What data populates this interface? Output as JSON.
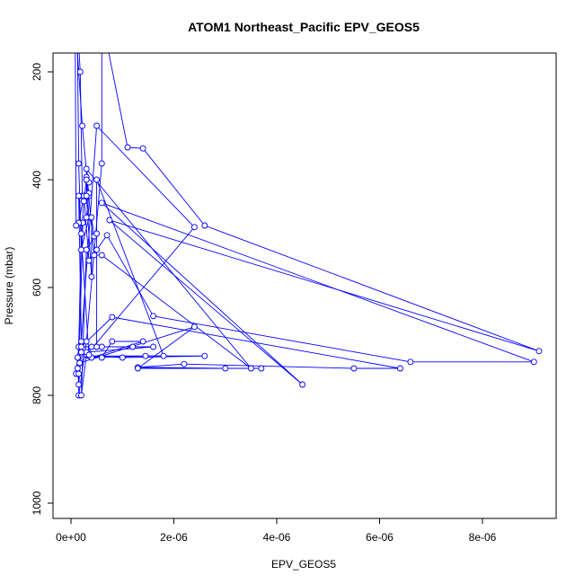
{
  "chart_data": {
    "type": "line",
    "title": "ATOM1 Northeast_Pacific EPV_GEOS5",
    "xlabel": "EPV_GEOS5",
    "ylabel": "Pressure (mbar)",
    "xlim": [
      -5e-07,
      9.3e-06
    ],
    "ylim": [
      1020,
      180
    ],
    "y_reversed": true,
    "x_ticks": [
      0,
      2e-06,
      4e-06,
      6e-06,
      8e-06
    ],
    "x_tick_labels": [
      "0e+00",
      "2e-06",
      "4e-06",
      "6e-06",
      "8e-06"
    ],
    "y_ticks": [
      200,
      400,
      600,
      800,
      1000
    ],
    "y_tick_labels": [
      "200",
      "400",
      "600",
      "800",
      "1000"
    ],
    "color": "#0000ff",
    "grid": false,
    "legend": "none",
    "series": [
      {
        "points": [
          [
            1e-07,
            760
          ],
          [
            1.3e-07,
            730
          ],
          [
            1.5e-07,
            710
          ],
          [
            2e-07,
            500
          ],
          [
            2.5e-07,
            440
          ],
          [
            3e-07,
            400
          ],
          [
            3.5e-07,
            470
          ],
          [
            2e-07,
            530
          ],
          [
            1.5e-07,
            370
          ],
          [
            1.2e-07,
            100
          ],
          [
            1.8e-07,
            200
          ],
          [
            2.2e-07,
            430
          ],
          [
            3.5e-07,
            430
          ],
          [
            3e-07,
            395
          ],
          [
            3.5e-07,
            425
          ],
          [
            3e-07,
            470
          ],
          [
            2.3e-07,
            480
          ],
          [
            1.5e-07,
            760
          ],
          [
            1.5e-07,
            800
          ],
          [
            3e-07,
            700
          ],
          [
            6e-07,
            370
          ],
          [
            6e-07,
            100
          ],
          [
            1.1e-06,
            340
          ],
          [
            1.4e-06,
            342
          ],
          [
            2.6e-06,
            485
          ],
          [
            9.1e-06,
            718
          ],
          [
            7.5e-07,
            475
          ],
          [
            4.5e-06,
            780
          ],
          [
            6e-07,
            443
          ],
          [
            9e-06,
            738
          ],
          [
            6.6e-06,
            738
          ],
          [
            1.6e-06,
            653
          ],
          [
            7e-07,
            503
          ],
          [
            5e-07,
            530
          ],
          [
            3.5e-07,
            550
          ],
          [
            2.5e-07,
            430
          ],
          [
            1.5e-07,
            480
          ],
          [
            1e-07,
            485
          ],
          [
            8e-08,
            100
          ],
          [
            2.2e-07,
            300
          ],
          [
            4.5e-07,
            540
          ],
          [
            6e-07,
            540
          ],
          [
            3.5e-06,
            750
          ],
          [
            3e-07,
            380
          ],
          [
            3.5e-07,
            405
          ],
          [
            3e-07,
            400
          ],
          [
            3e-07,
            430
          ],
          [
            4e-07,
            580
          ],
          [
            4e-07,
            470
          ],
          [
            4.5e-07,
            505
          ],
          [
            5e-07,
            500
          ],
          [
            3e-07,
            530
          ],
          [
            2e-07,
            800
          ],
          [
            3e-07,
            725
          ],
          [
            2.4e-06,
            488
          ],
          [
            5e-07,
            300
          ],
          [
            2e-07,
            700
          ],
          [
            1.5e-07,
            430
          ],
          [
            3.5e-07,
            727
          ],
          [
            1e-06,
            730
          ],
          [
            2.6e-06,
            727
          ],
          [
            3.5e-07,
            727
          ],
          [
            6e-07,
            730
          ],
          [
            8e-07,
            700
          ],
          [
            1.4e-06,
            700
          ],
          [
            4e-07,
            730
          ],
          [
            1.45e-06,
            727
          ],
          [
            1.8e-06,
            727
          ],
          [
            5e-07,
            400
          ],
          [
            5e-07,
            710
          ],
          [
            1.2e-06,
            710
          ],
          [
            1.6e-06,
            710
          ],
          [
            3e-07,
            720
          ],
          [
            4e-07,
            710
          ],
          [
            6e-07,
            710
          ],
          [
            2e-07,
            710
          ],
          [
            8e-07,
            655
          ],
          [
            6.4e-06,
            750
          ],
          [
            5.5e-06,
            750
          ],
          [
            2.2e-06,
            742
          ],
          [
            1.3e-06,
            748
          ],
          [
            3e-06,
            750
          ],
          [
            3.7e-06,
            750
          ],
          [
            1.3e-06,
            750
          ],
          [
            2.4e-06,
            673
          ],
          [
            1.7e-07,
            740
          ],
          [
            1.3e-07,
            750
          ],
          [
            1.5e-07,
            780
          ],
          [
            2e-07,
            720
          ],
          [
            3.5e-07,
            725
          ]
        ]
      }
    ]
  }
}
